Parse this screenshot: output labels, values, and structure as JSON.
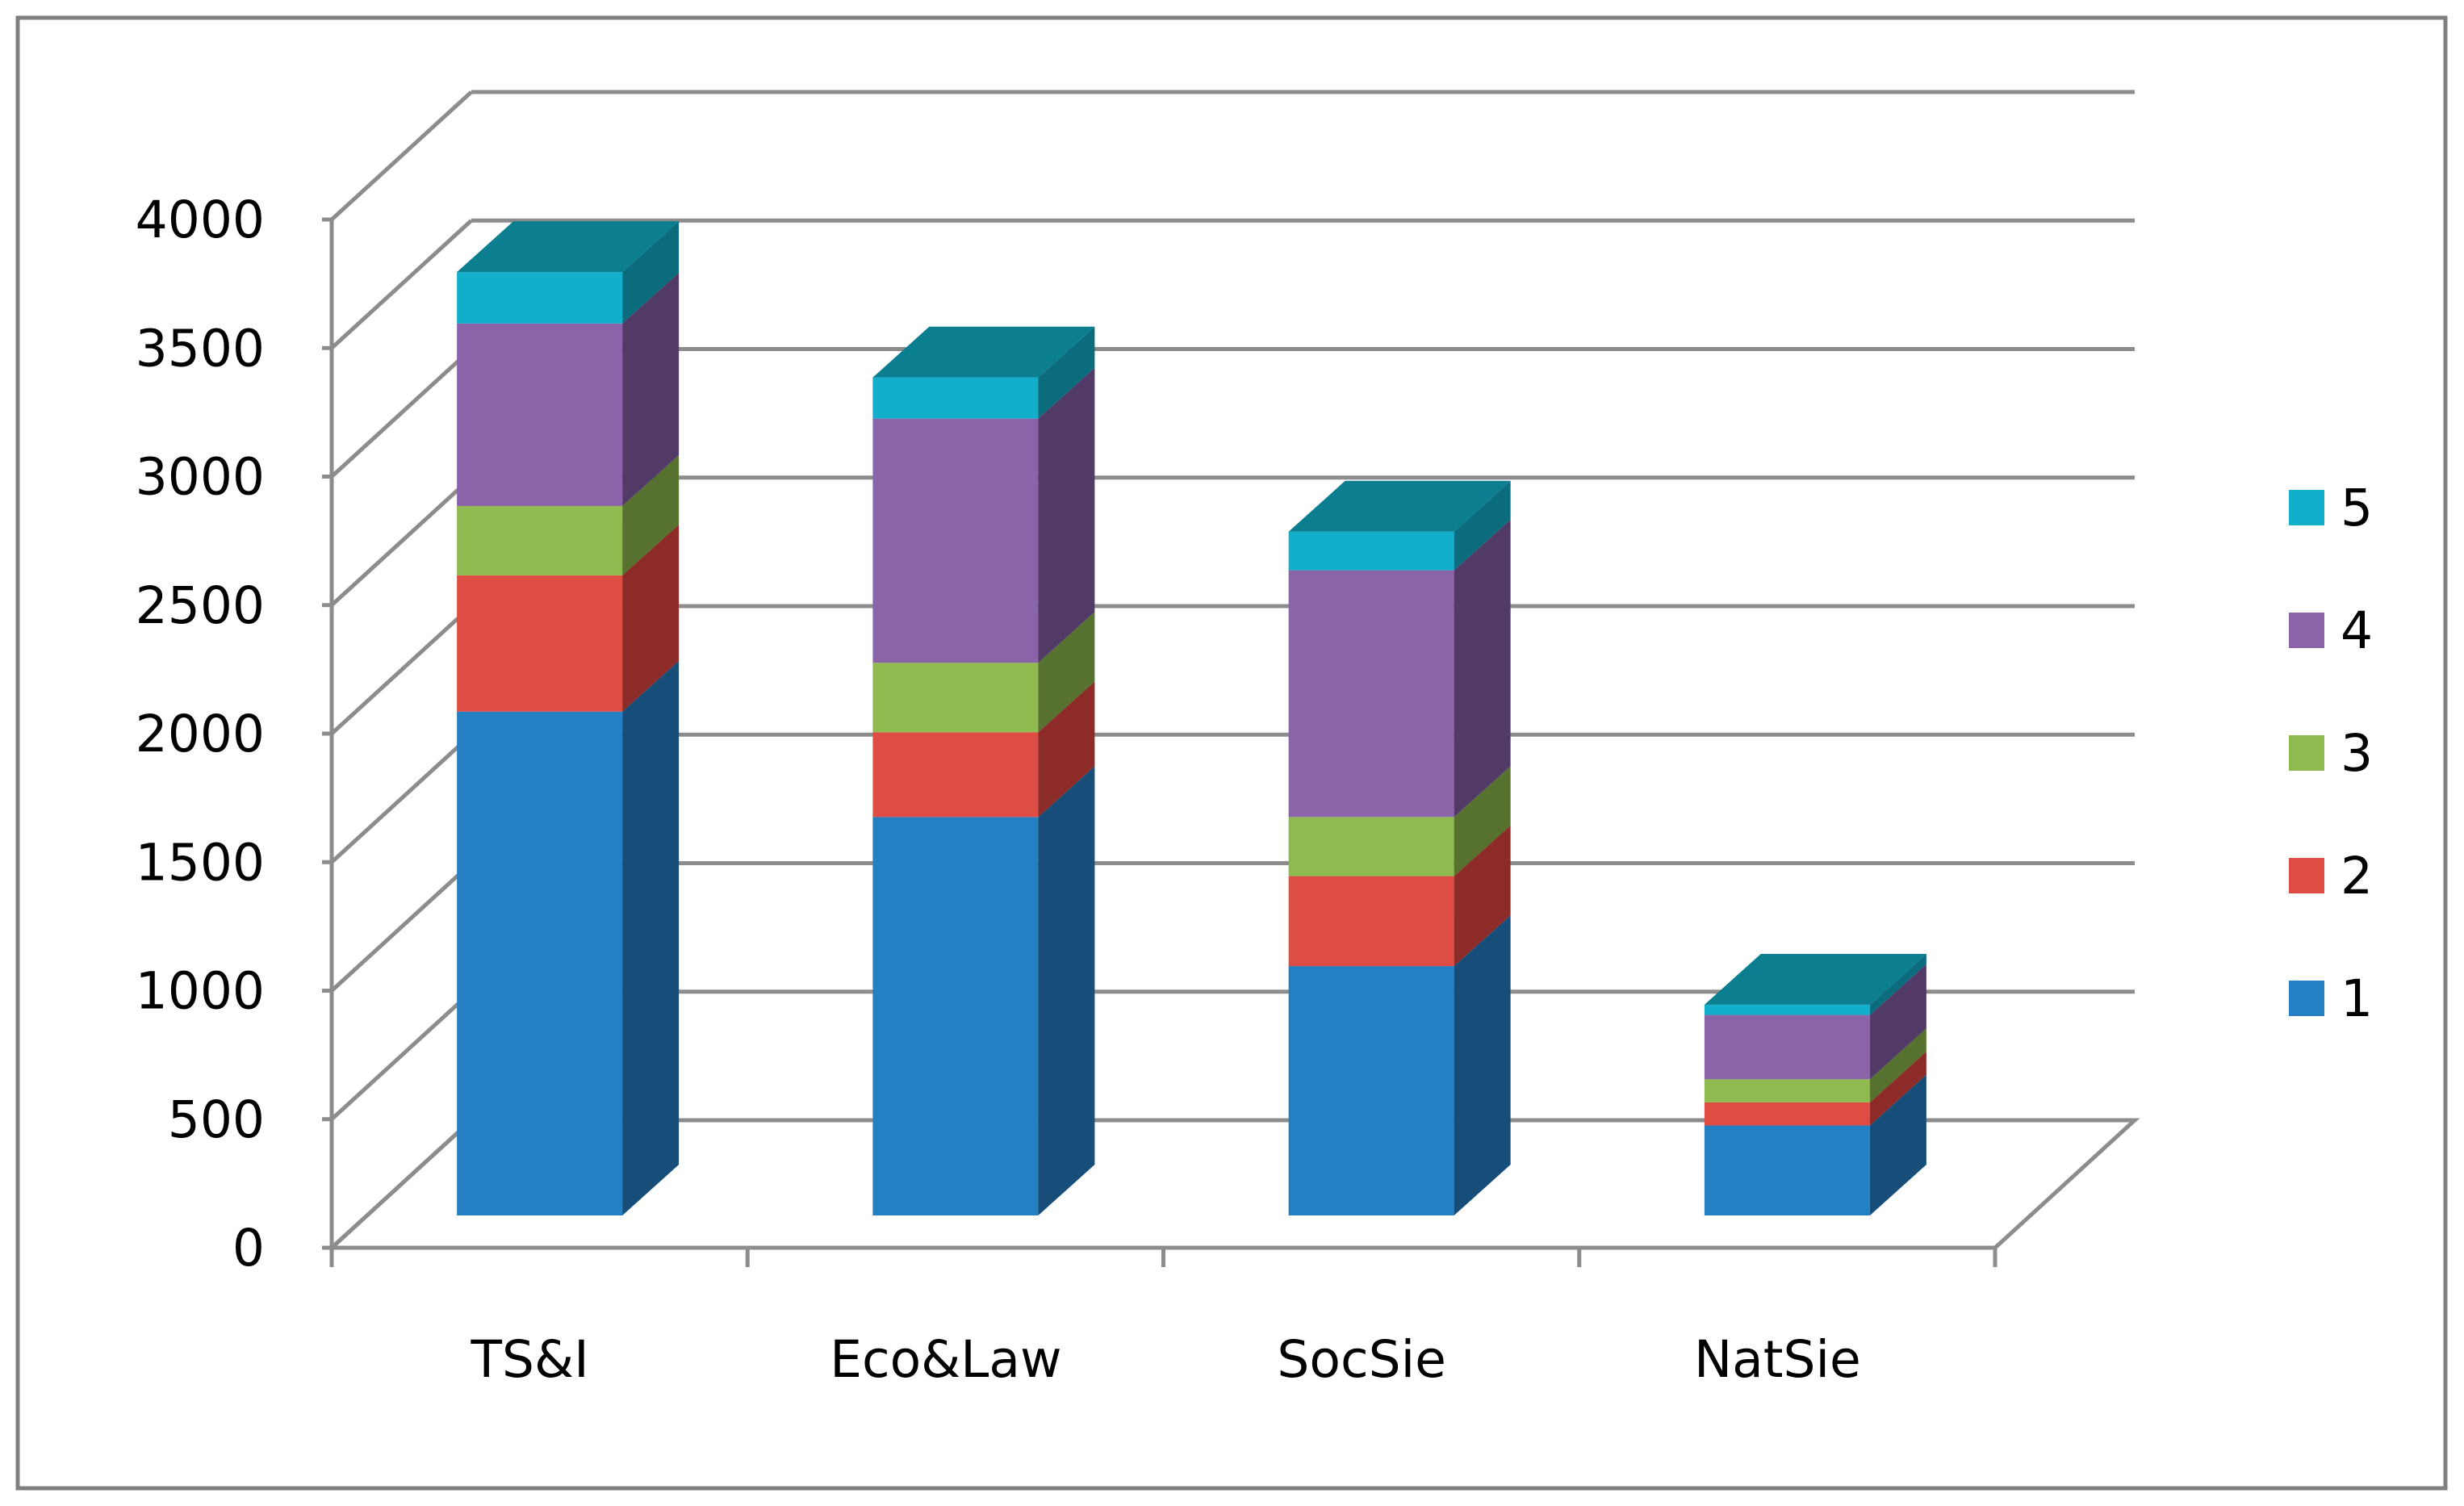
{
  "chart_data": {
    "type": "bar",
    "subtype": "stacked-3d",
    "title": "",
    "xlabel": "",
    "ylabel": "",
    "categories": [
      "TS&I",
      "Eco&Law",
      "SocSie",
      "NatSie"
    ],
    "ylim": [
      0,
      4000
    ],
    "yticks": [
      "0",
      "500",
      "1000",
      "1500",
      "2000",
      "2500",
      "3000",
      "3500",
      "4000"
    ],
    "grid": true,
    "legend_position": "right",
    "series": [
      {
        "name": "1",
        "values": [
          1960,
          1550,
          970,
          350
        ],
        "color": "#2580c3",
        "side_color": "#174e79",
        "top_color": "#1b6aa4"
      },
      {
        "name": "2",
        "values": [
          530,
          330,
          350,
          90
        ],
        "color": "#de4d43",
        "side_color": "#8c2b27",
        "top_color": "#b53a33"
      },
      {
        "name": "3",
        "values": [
          270,
          270,
          230,
          90
        ],
        "color": "#8fba4f",
        "side_color": "#56722e",
        "top_color": "#6f933c"
      },
      {
        "name": "4",
        "values": [
          710,
          950,
          960,
          250
        ],
        "color": "#8a63a9",
        "side_color": "#523a66",
        "top_color": "#6f4f88"
      },
      {
        "name": "5",
        "values": [
          200,
          160,
          150,
          40
        ],
        "color": "#12afcc",
        "side_color": "#0b6c7e",
        "top_color": "#0b7e90"
      }
    ]
  }
}
